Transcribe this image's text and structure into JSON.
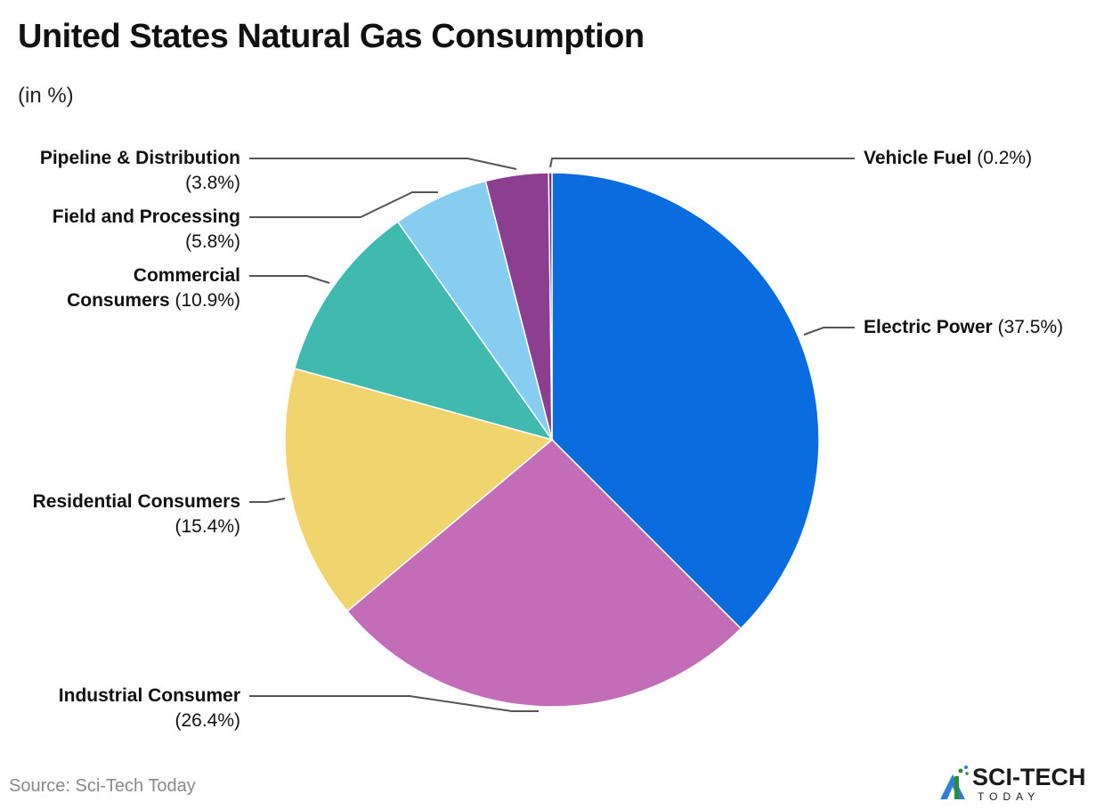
{
  "header": {
    "title": "United States Natural Gas Consumption",
    "subtitle": "(in %)"
  },
  "footer": {
    "source": "Source: Sci-Tech Today",
    "logo_main": "SCI-TECH",
    "logo_sub": "TODAY"
  },
  "labels": {
    "vehicle": {
      "name": "Vehicle Fuel",
      "value": "(0.2%)"
    },
    "electric": {
      "name": "Electric Power",
      "value": "(37.5%)"
    },
    "industrial": {
      "name": "Industrial Consumer",
      "value": "(26.4%)"
    },
    "residential": {
      "name": "Residential Consumers",
      "value": "(15.4%)"
    },
    "commercial": {
      "name1": "Commercial",
      "name2": "Consumers",
      "value": "(10.9%)"
    },
    "field": {
      "name": "Field and Processing",
      "value": "(5.8%)"
    },
    "pipeline": {
      "name": "Pipeline & Distribution",
      "value": "(3.8%)"
    }
  },
  "chart_data": {
    "type": "pie",
    "title": "United States Natural Gas Consumption",
    "subtitle": "(in %)",
    "start_angle": "top, clockwise",
    "categories": [
      "Electric Power",
      "Industrial Consumer",
      "Residential Consumers",
      "Commercial Consumers",
      "Field and Processing",
      "Pipeline & Distribution",
      "Vehicle Fuel"
    ],
    "values": [
      37.5,
      26.4,
      15.4,
      10.9,
      5.8,
      3.8,
      0.2
    ],
    "colors": [
      "#0b6cdf",
      "#c36db8",
      "#f0d46e",
      "#40b9ae",
      "#87cdf0",
      "#8b3f8e",
      "#5a2d9c"
    ],
    "source": "Source: Sci-Tech Today"
  }
}
